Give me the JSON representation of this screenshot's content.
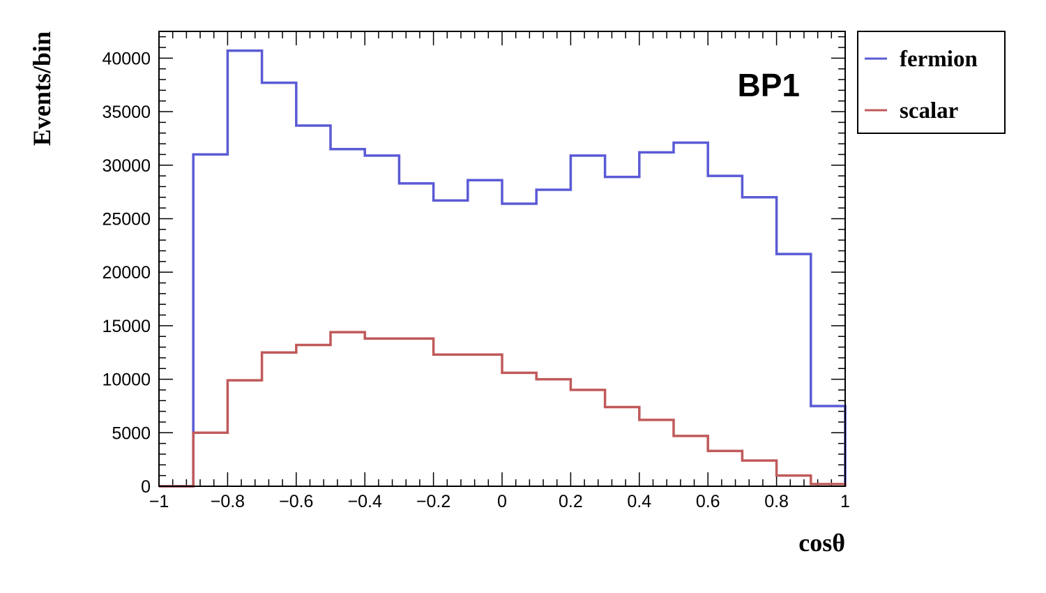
{
  "chart_data": {
    "type": "histogram",
    "xlabel": "cosθ",
    "ylabel": "Events/bin",
    "annotation": "BP1",
    "xlim": [
      -1,
      1
    ],
    "ylim": [
      0,
      42500
    ],
    "x_ticks": [
      -1,
      -0.8,
      -0.6,
      -0.4,
      -0.2,
      0,
      0.2,
      0.4,
      0.6,
      0.8,
      1
    ],
    "x_tick_labels": [
      "−1",
      "−0.8",
      "−0.6",
      "−0.4",
      "−0.2",
      "0",
      "0.2",
      "0.4",
      "0.6",
      "0.8",
      "1"
    ],
    "y_ticks": [
      0,
      5000,
      10000,
      15000,
      20000,
      25000,
      30000,
      35000,
      40000
    ],
    "y_tick_labels": [
      "0",
      "5000",
      "10000",
      "15000",
      "20000",
      "25000",
      "30000",
      "35000",
      "40000"
    ],
    "bin_edges": [
      -1,
      -0.9,
      -0.8,
      -0.7,
      -0.6,
      -0.5,
      -0.4,
      -0.3,
      -0.2,
      -0.1,
      0,
      0.1,
      0.2,
      0.3,
      0.4,
      0.5,
      0.6,
      0.7,
      0.8,
      0.9,
      1
    ],
    "legend": {
      "placement": "outside-top-right"
    },
    "series": [
      {
        "name": "fermion",
        "color": "#5a5ad6",
        "values": [
          0,
          31000,
          40700,
          37700,
          33700,
          31500,
          30900,
          28300,
          26700,
          28600,
          26400,
          27700,
          30900,
          28900,
          31200,
          32100,
          29000,
          27000,
          21700,
          7500
        ]
      },
      {
        "name": "scalar",
        "color": "#c05a5a",
        "values": [
          0,
          5000,
          9900,
          12500,
          13200,
          14400,
          13800,
          13800,
          12300,
          12300,
          10600,
          10000,
          9000,
          7400,
          6200,
          4700,
          3300,
          2400,
          1000,
          200
        ]
      }
    ]
  }
}
